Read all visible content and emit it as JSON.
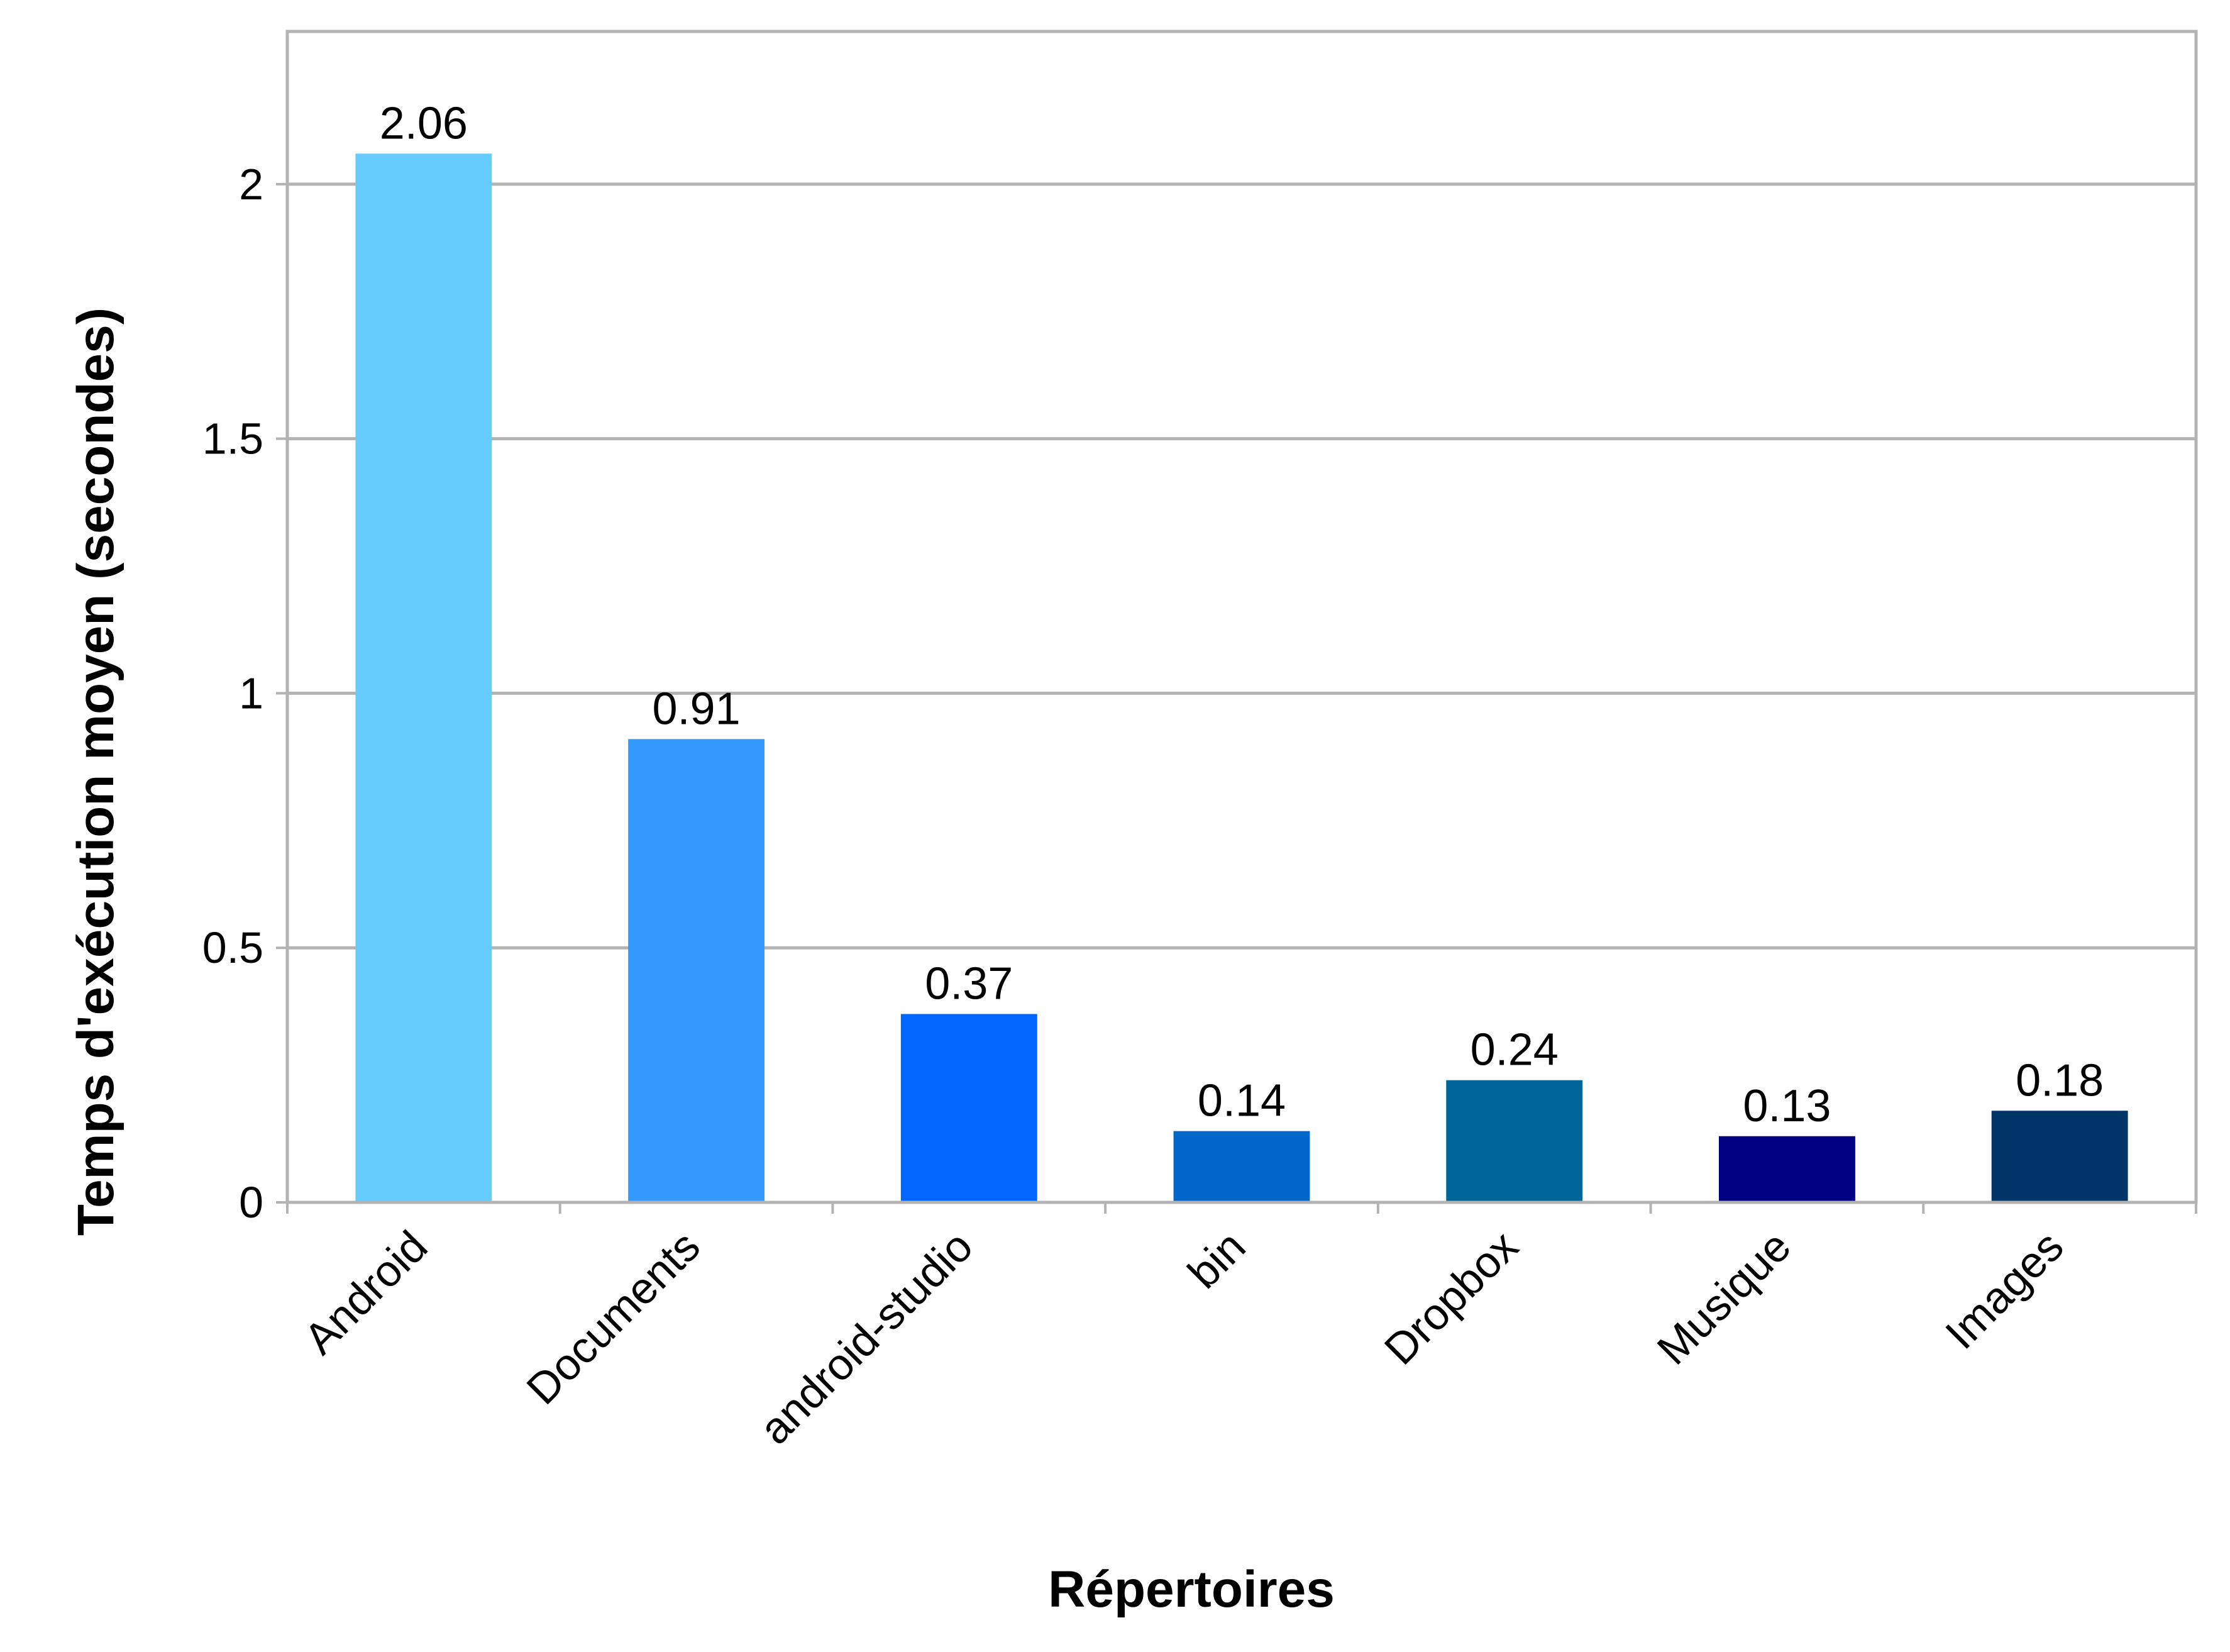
{
  "chart_data": {
    "type": "bar",
    "title": "",
    "xlabel": "Répertoires",
    "ylabel": "Temps d'exécution moyen (secondes)",
    "categories": [
      "Android",
      "Documents",
      "android-studio",
      "bin",
      "Dropbox",
      "Musique",
      "Images"
    ],
    "values": [
      2.06,
      0.91,
      0.37,
      0.14,
      0.24,
      0.13,
      0.18
    ],
    "data_labels": [
      "2.06",
      "0.91",
      "0.37",
      "0.14",
      "0.24",
      "0.13",
      "0.18"
    ],
    "colors": [
      "#66CCFF",
      "#3399FF",
      "#0066FF",
      "#0066CC",
      "#006699",
      "#000080",
      "#003366"
    ],
    "ylim": [
      0,
      2.3
    ],
    "yticks": [
      0,
      0.5,
      1,
      1.5,
      2
    ],
    "ytick_labels": [
      "0",
      "0.5",
      "1",
      "1.5",
      "2"
    ],
    "grid": true,
    "legend": "none"
  }
}
